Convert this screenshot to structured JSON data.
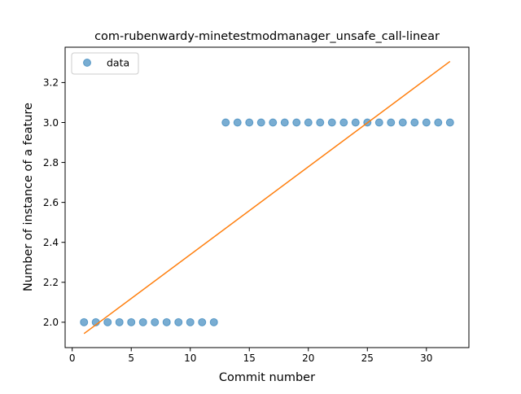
{
  "chart_data": {
    "type": "scatter",
    "title": "com-rubenwardy-minetestmodmanager_unsafe_call-linear",
    "xlabel": "Commit number",
    "ylabel": "Number of instance of a feature",
    "xlim": [
      -0.6,
      33.6
    ],
    "ylim": [
      1.873,
      3.377
    ],
    "xticks": [
      0,
      5,
      10,
      15,
      20,
      25,
      30
    ],
    "xtick_labels": [
      "0",
      "5",
      "10",
      "15",
      "20",
      "25",
      "30"
    ],
    "yticks": [
      2.0,
      2.2,
      2.4,
      2.6,
      2.8,
      3.0,
      3.2
    ],
    "ytick_labels": [
      "2.0",
      "2.2",
      "2.4",
      "2.6",
      "2.8",
      "3.0",
      "3.2"
    ],
    "grid": false,
    "legend": {
      "position": "top-left",
      "entries": [
        "data"
      ]
    },
    "series": [
      {
        "name": "data",
        "kind": "scatter",
        "color": "#1f77b4",
        "x": [
          1,
          2,
          3,
          4,
          5,
          6,
          7,
          8,
          9,
          10,
          11,
          12,
          13,
          14,
          15,
          16,
          17,
          18,
          19,
          20,
          21,
          22,
          23,
          24,
          25,
          26,
          27,
          28,
          29,
          30,
          31,
          32
        ],
        "y": [
          2,
          2,
          2,
          2,
          2,
          2,
          2,
          2,
          2,
          2,
          2,
          2,
          3,
          3,
          3,
          3,
          3,
          3,
          3,
          3,
          3,
          3,
          3,
          3,
          3,
          3,
          3,
          3,
          3,
          3,
          3,
          3
        ]
      },
      {
        "kind": "line",
        "color": "#ff7f0e",
        "x": [
          1,
          32
        ],
        "y": [
          1.943,
          3.306
        ]
      }
    ]
  }
}
